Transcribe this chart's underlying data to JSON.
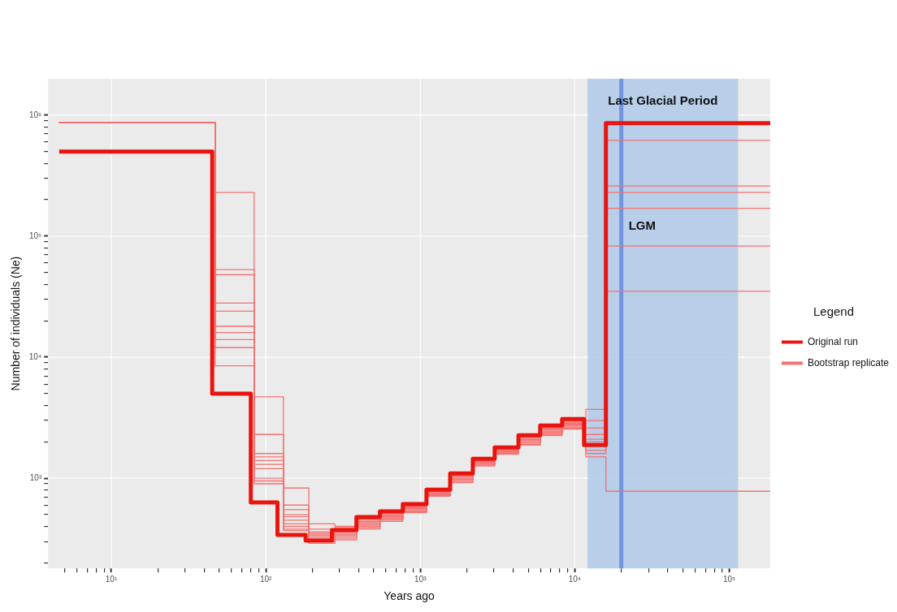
{
  "chart_data": {
    "type": "step",
    "xlabel": "Years ago",
    "ylabel": "Number of individuals (Ne)",
    "legend_title": "Legend",
    "legend": "right",
    "log": "xy",
    "grid": true,
    "xlim": [
      3.9,
      184000
    ],
    "ylim": [
      180,
      2000000
    ],
    "xticks": [
      {
        "value": 5,
        "label": null
      },
      {
        "value": 6,
        "label": null
      },
      {
        "value": 7,
        "label": null
      },
      {
        "value": 8,
        "label": null
      },
      {
        "value": 9,
        "label": null
      },
      {
        "value": 10,
        "label": "10¹"
      },
      {
        "value": 20,
        "label": null
      },
      {
        "value": 30,
        "label": null
      },
      {
        "value": 40,
        "label": null
      },
      {
        "value": 50,
        "label": null
      },
      {
        "value": 60,
        "label": null
      },
      {
        "value": 70,
        "label": null
      },
      {
        "value": 80,
        "label": null
      },
      {
        "value": 90,
        "label": null
      },
      {
        "value": 100,
        "label": "10²"
      },
      {
        "value": 200,
        "label": null
      },
      {
        "value": 300,
        "label": null
      },
      {
        "value": 400,
        "label": null
      },
      {
        "value": 500,
        "label": null
      },
      {
        "value": 600,
        "label": null
      },
      {
        "value": 700,
        "label": null
      },
      {
        "value": 800,
        "label": null
      },
      {
        "value": 900,
        "label": null
      },
      {
        "value": 1000,
        "label": "10³"
      },
      {
        "value": 2000,
        "label": null
      },
      {
        "value": 3000,
        "label": null
      },
      {
        "value": 4000,
        "label": null
      },
      {
        "value": 5000,
        "label": null
      },
      {
        "value": 6000,
        "label": null
      },
      {
        "value": 7000,
        "label": null
      },
      {
        "value": 8000,
        "label": null
      },
      {
        "value": 9000,
        "label": null
      },
      {
        "value": 10000,
        "label": "10⁴"
      },
      {
        "value": 20000,
        "label": null
      },
      {
        "value": 30000,
        "label": null
      },
      {
        "value": 40000,
        "label": null
      },
      {
        "value": 50000,
        "label": null
      },
      {
        "value": 60000,
        "label": null
      },
      {
        "value": 70000,
        "label": null
      },
      {
        "value": 80000,
        "label": null
      },
      {
        "value": 90000,
        "label": null
      },
      {
        "value": 100000,
        "label": "10⁵"
      }
    ],
    "yticks": [
      {
        "value": 200,
        "label": null
      },
      {
        "value": 300,
        "label": null
      },
      {
        "value": 400,
        "label": null
      },
      {
        "value": 500,
        "label": null
      },
      {
        "value": 600,
        "label": null
      },
      {
        "value": 700,
        "label": null
      },
      {
        "value": 800,
        "label": null
      },
      {
        "value": 900,
        "label": null
      },
      {
        "value": 1000,
        "label": "10³"
      },
      {
        "value": 2000,
        "label": null
      },
      {
        "value": 3000,
        "label": null
      },
      {
        "value": 4000,
        "label": null
      },
      {
        "value": 5000,
        "label": null
      },
      {
        "value": 6000,
        "label": null
      },
      {
        "value": 7000,
        "label": null
      },
      {
        "value": 8000,
        "label": null
      },
      {
        "value": 9000,
        "label": null
      },
      {
        "value": 10000,
        "label": "10⁴"
      },
      {
        "value": 20000,
        "label": null
      },
      {
        "value": 30000,
        "label": null
      },
      {
        "value": 40000,
        "label": null
      },
      {
        "value": 50000,
        "label": null
      },
      {
        "value": 60000,
        "label": null
      },
      {
        "value": 70000,
        "label": null
      },
      {
        "value": 80000,
        "label": null
      },
      {
        "value": 90000,
        "label": null
      },
      {
        "value": 100000,
        "label": "10⁵"
      },
      {
        "value": 200000,
        "label": null
      },
      {
        "value": 300000,
        "label": null
      },
      {
        "value": 400000,
        "label": null
      },
      {
        "value": 500000,
        "label": null
      },
      {
        "value": 600000,
        "label": null
      },
      {
        "value": 700000,
        "label": null
      },
      {
        "value": 800000,
        "label": null
      },
      {
        "value": 900000,
        "label": null
      },
      {
        "value": 1000000,
        "label": "10⁶"
      }
    ],
    "bands": [
      {
        "axis": "x",
        "from": 12100,
        "to": 114000,
        "label": "Last Glacial Period",
        "color": "#b3cbe9"
      }
    ],
    "ref_lines": [
      {
        "axis": "x",
        "value": 20000,
        "label": "LGM",
        "color": "#7195e3"
      }
    ],
    "x": [
      4.6,
      47,
      84,
      130,
      190,
      280,
      386,
      548,
      771,
      1097,
      1560,
      2188,
      3030,
      4320,
      5970,
      8280,
      11800,
      15900,
      184000
    ],
    "series": [
      {
        "name": "Bootstrap replicate",
        "color": "#f47272",
        "values": [
          870000,
          230000,
          4700,
          830,
          420,
          400,
          470,
          530,
          610,
          800,
          1100,
          1450,
          1800,
          2250,
          2700,
          3000,
          3700,
          870000,
          870000
        ]
      },
      {
        "color": "#f47272",
        "values": [
          870000,
          53000,
          2300,
          600,
          380,
          390,
          460,
          520,
          600,
          790,
          1080,
          1420,
          1780,
          2200,
          2650,
          2950,
          3000,
          620000,
          620000
        ]
      },
      {
        "color": "#f47272",
        "values": [
          870000,
          48000,
          1600,
          550,
          360,
          380,
          450,
          510,
          590,
          780,
          1060,
          1400,
          1750,
          2150,
          2600,
          2900,
          2600,
          260000,
          260000
        ]
      },
      {
        "color": "#f47272",
        "values": [
          870000,
          28000,
          1500,
          500,
          350,
          370,
          440,
          500,
          580,
          770,
          1040,
          1380,
          1720,
          2100,
          2550,
          2850,
          2300,
          230000,
          230000
        ]
      },
      {
        "color": "#f47272",
        "values": [
          870000,
          24000,
          1400,
          480,
          340,
          360,
          430,
          490,
          570,
          760,
          1020,
          1360,
          1700,
          2080,
          2500,
          2800,
          2100,
          170000,
          170000
        ]
      },
      {
        "color": "#f47272",
        "values": [
          870000,
          18000,
          1300,
          450,
          330,
          350,
          420,
          480,
          560,
          750,
          1000,
          1340,
          1680,
          2050,
          2450,
          2750,
          2000,
          83000,
          83000
        ]
      },
      {
        "color": "#f47272",
        "values": [
          870000,
          16000,
          1200,
          420,
          320,
          340,
          410,
          470,
          550,
          740,
          980,
          1320,
          1650,
          2000,
          2400,
          2700,
          1900,
          35000,
          35000
        ]
      },
      {
        "color": "#f47272",
        "values": [
          870000,
          14000,
          1000,
          400,
          310,
          330,
          400,
          460,
          540,
          730,
          960,
          1300,
          1620,
          1950,
          2350,
          2650,
          1500,
          780,
          780
        ]
      },
      {
        "color": "#f47272",
        "values": [
          870000,
          12000,
          900,
          380,
          300,
          320,
          390,
          450,
          530,
          720,
          940,
          1280,
          1600,
          1900,
          2300,
          2600,
          1700,
          870000,
          870000
        ]
      },
      {
        "color": "#f47272",
        "values": [
          870000,
          8500,
          950,
          370,
          290,
          310,
          380,
          440,
          520,
          710,
          920,
          1260,
          1580,
          1880,
          2250,
          2550,
          1600,
          870000,
          870000
        ]
      },
      {
        "name": "Original run",
        "color": "#e8140f",
        "x": [
          4.6,
          45,
          80,
          119,
          181,
          268,
          386,
          548,
          771,
          1097,
          1560,
          2188,
          3030,
          4320,
          5970,
          8280,
          11480,
          15900,
          184000
        ],
        "values": [
          500000,
          5000,
          630,
          340,
          305,
          373,
          477,
          532,
          611,
          806,
          1097,
          1447,
          1795,
          2264,
          2723,
          3080,
          1880,
          860000,
          860000
        ]
      }
    ]
  }
}
